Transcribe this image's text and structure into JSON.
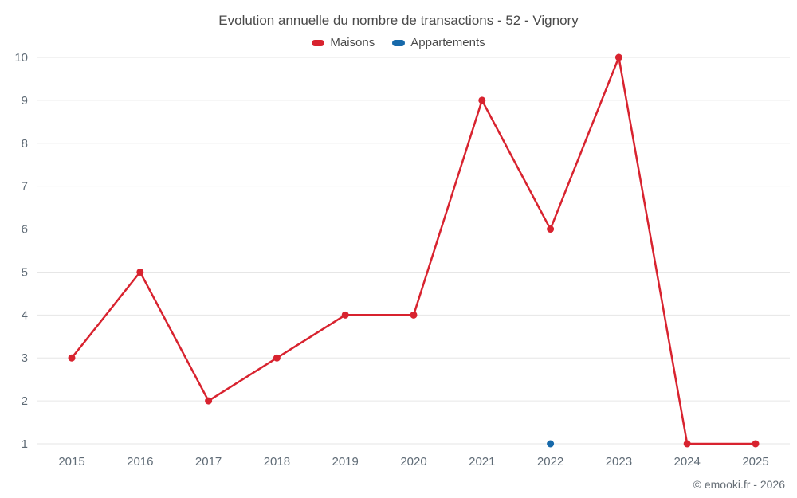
{
  "title": "Evolution annuelle du nombre de transactions - 52 - Vignory",
  "footer": "© emooki.fr - 2026",
  "legend": [
    {
      "label": "Maisons",
      "color": "#d8232f"
    },
    {
      "label": "Appartements",
      "color": "#1769aa"
    }
  ],
  "chart_data": {
    "type": "line",
    "title": "Evolution annuelle du nombre de transactions - 52 - Vignory",
    "categories": [
      "2015",
      "2016",
      "2017",
      "2018",
      "2019",
      "2020",
      "2021",
      "2022",
      "2023",
      "2024",
      "2025"
    ],
    "series": [
      {
        "name": "Maisons",
        "color": "#d8232f",
        "values": [
          3,
          5,
          2,
          3,
          4,
          4,
          9,
          6,
          10,
          1,
          1
        ]
      },
      {
        "name": "Appartements",
        "color": "#1769aa",
        "values": [
          null,
          null,
          null,
          null,
          null,
          null,
          null,
          1,
          null,
          null,
          null
        ]
      }
    ],
    "xlabel": "",
    "ylabel": "",
    "ylim": [
      1,
      10
    ],
    "yticks": [
      1,
      2,
      3,
      4,
      5,
      6,
      7,
      8,
      9,
      10
    ],
    "grid": true,
    "legend_position": "top",
    "grid_color": "#e6e6e6",
    "tick_label_color": "#5f6b76"
  }
}
